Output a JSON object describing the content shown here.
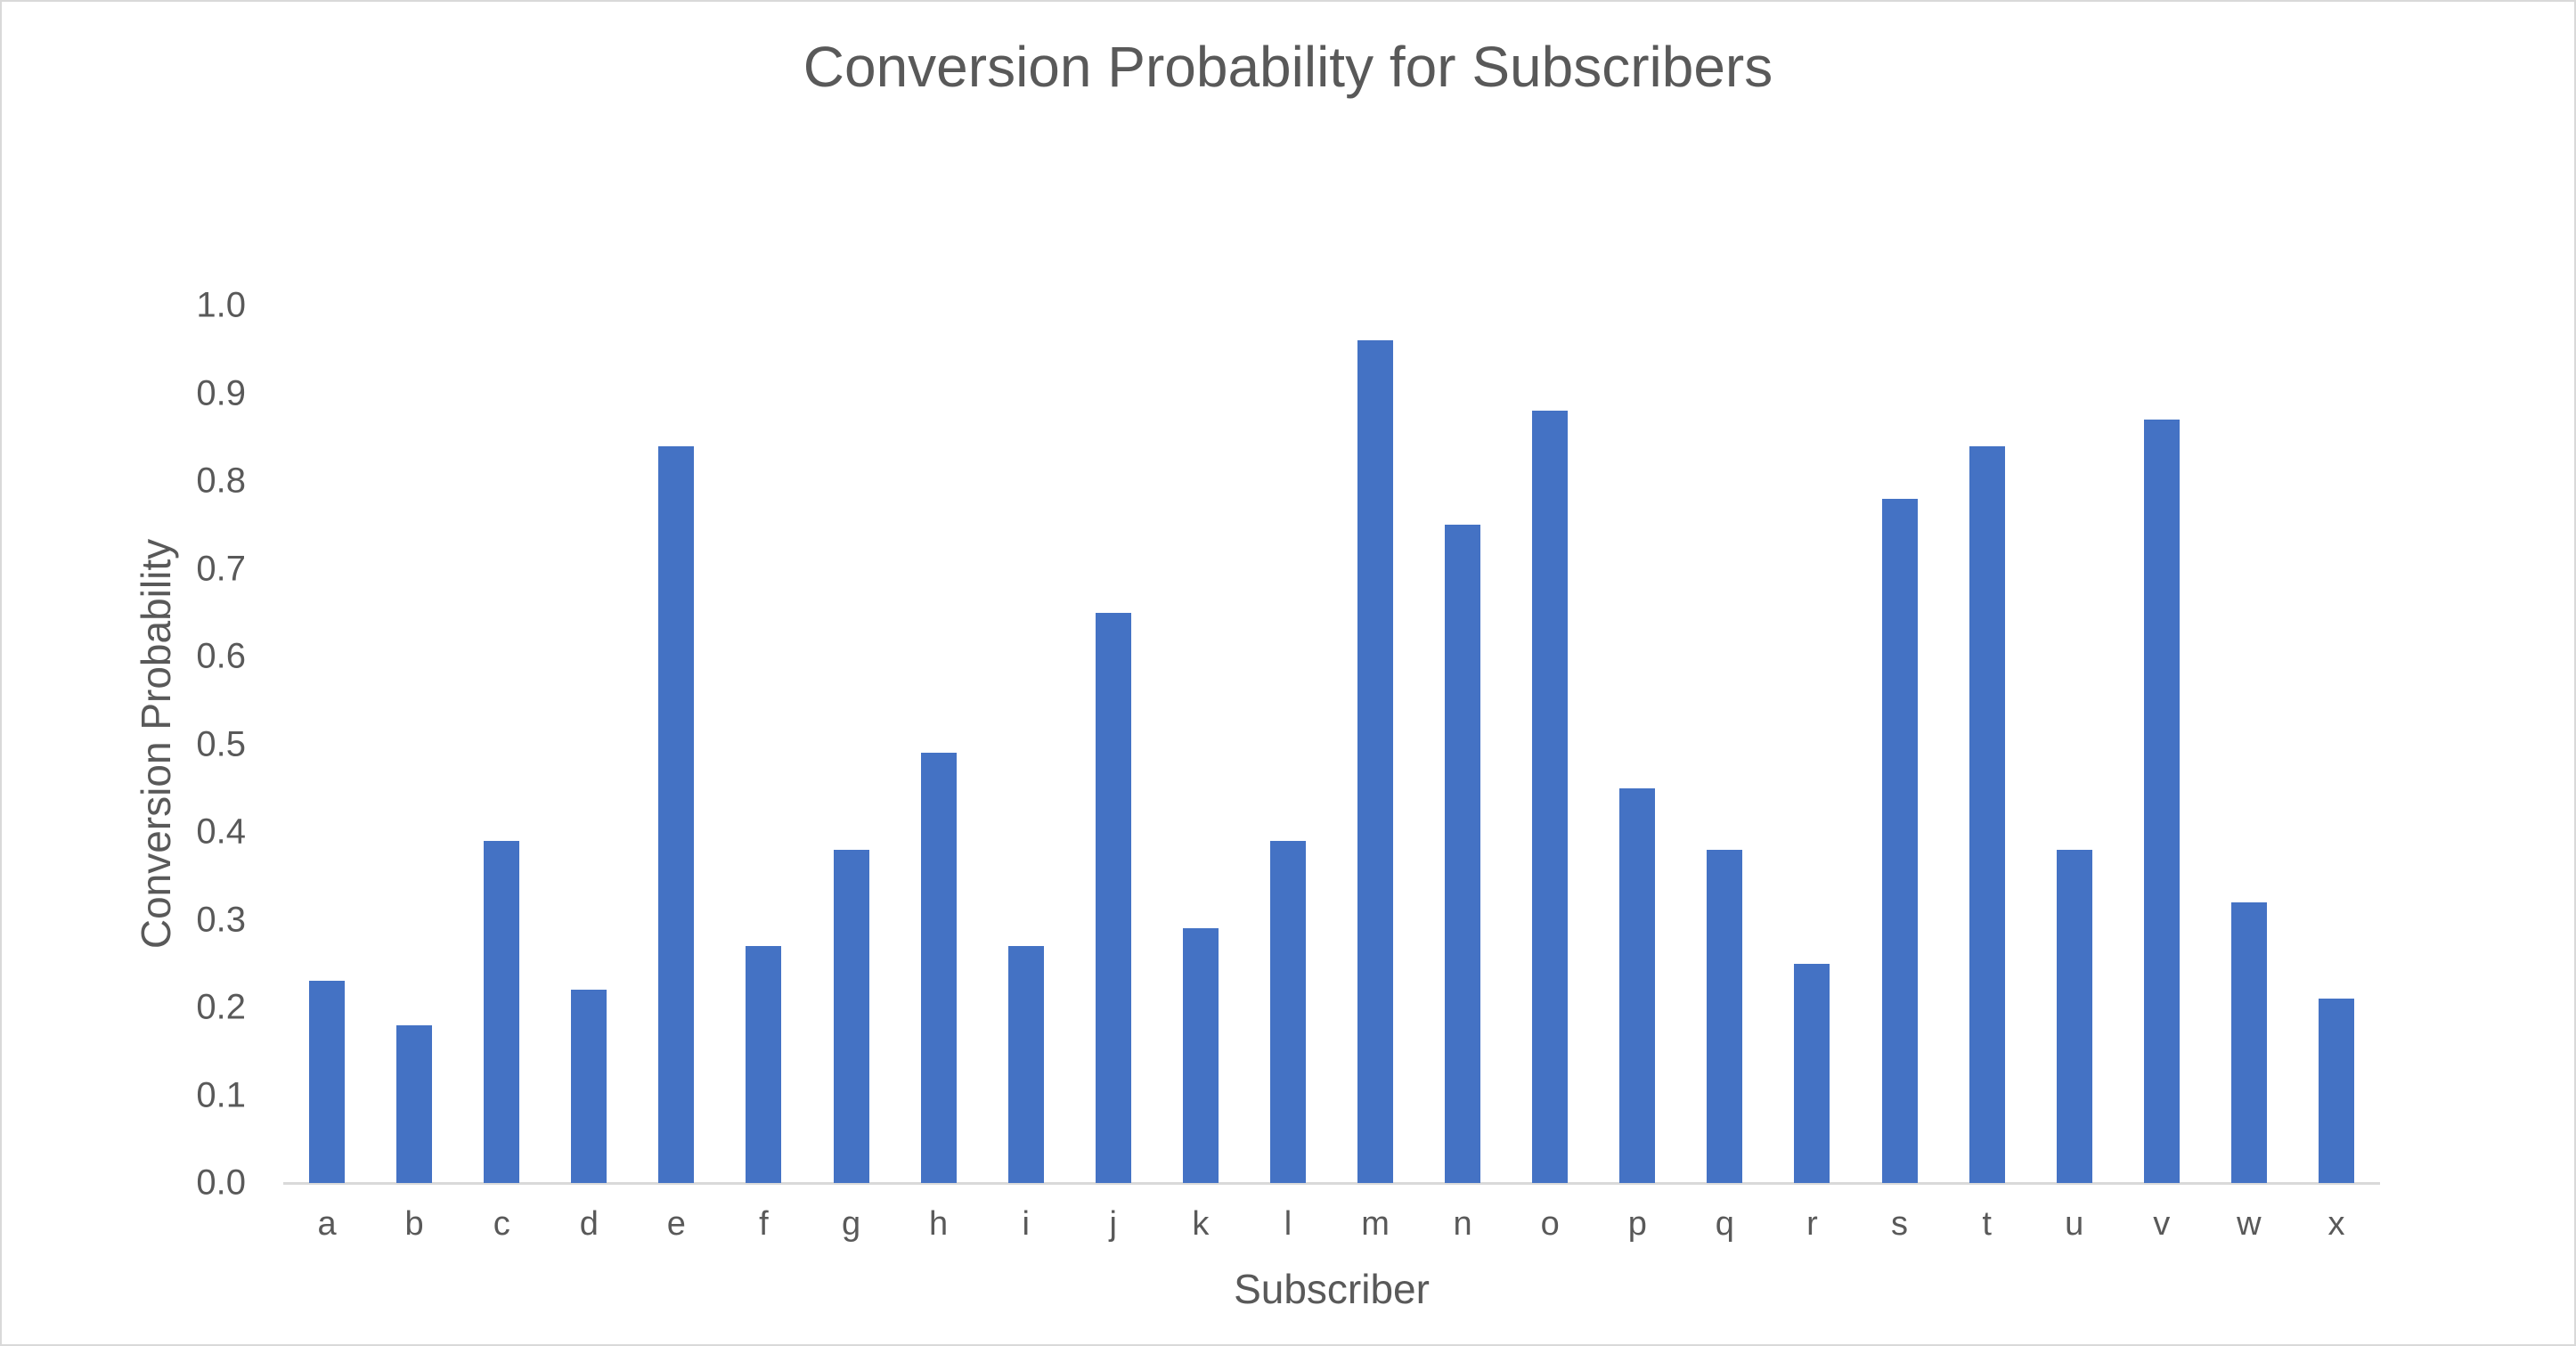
{
  "chart_data": {
    "type": "bar",
    "title": "Conversion Probability for Subscribers",
    "xlabel": "Subscriber",
    "ylabel": "Conversion Probability",
    "ylim": [
      0,
      1.0
    ],
    "yticks": [
      "0.0",
      "0.1",
      "0.2",
      "0.3",
      "0.4",
      "0.5",
      "0.6",
      "0.7",
      "0.8",
      "0.9",
      "1.0"
    ],
    "grid": false,
    "legend": null,
    "bar_color": "#4472c4",
    "categories": [
      "a",
      "b",
      "c",
      "d",
      "e",
      "f",
      "g",
      "h",
      "i",
      "j",
      "k",
      "l",
      "m",
      "n",
      "o",
      "p",
      "q",
      "r",
      "s",
      "t",
      "u",
      "v",
      "w",
      "x"
    ],
    "values": [
      0.23,
      0.18,
      0.39,
      0.22,
      0.84,
      0.27,
      0.38,
      0.49,
      0.27,
      0.65,
      0.29,
      0.39,
      0.96,
      0.75,
      0.88,
      0.45,
      0.38,
      0.25,
      0.78,
      0.84,
      0.38,
      0.87,
      0.32,
      0.21
    ]
  }
}
